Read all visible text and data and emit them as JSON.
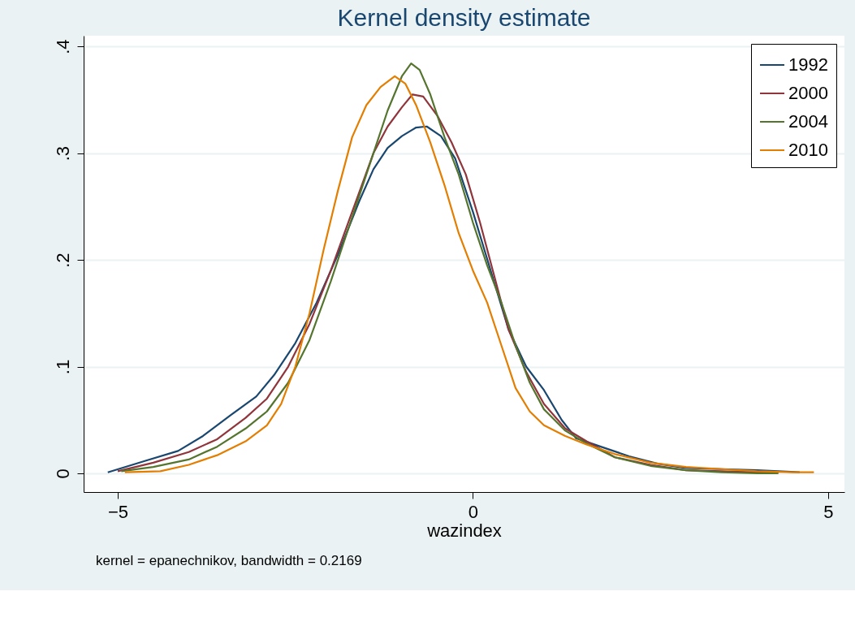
{
  "chart_data": {
    "type": "line",
    "title": "Kernel density estimate",
    "xlabel": "wazindex",
    "annotations": [
      "kernel = epanechnikov, bandwidth = 0.2169"
    ],
    "xlim": [
      -5.48,
      5.23
    ],
    "ylim": [
      -0.0175,
      0.41
    ],
    "xticks": [
      -5,
      0,
      5
    ],
    "yticks": [
      0,
      {
        "value": 0.1,
        "label": ".1"
      },
      {
        "value": 0.2,
        "label": ".2"
      },
      {
        "value": 0.3,
        "label": ".3"
      },
      {
        "value": 0.4,
        "label": ".4"
      }
    ],
    "grid": "y",
    "legend": "top right",
    "marker": "none",
    "line_style": "solid",
    "series": [
      {
        "name": "1992",
        "color": "#1a476f",
        "x": [
          -5.14,
          -4.6,
          -4.15,
          -3.8,
          -3.4,
          -3.05,
          -2.8,
          -2.5,
          -2.2,
          -1.9,
          -1.6,
          -1.4,
          -1.2,
          -1.0,
          -0.8,
          -0.65,
          -0.45,
          -0.25,
          0,
          0.25,
          0.5,
          0.75,
          1.0,
          1.25,
          1.45,
          1.8,
          2.2,
          2.6,
          3.0,
          3.5,
          4.0,
          4.6
        ],
        "values": [
          0.001,
          0.012,
          0.021,
          0.035,
          0.055,
          0.072,
          0.092,
          0.122,
          0.16,
          0.205,
          0.255,
          0.285,
          0.305,
          0.316,
          0.324,
          0.325,
          0.316,
          0.295,
          0.245,
          0.19,
          0.135,
          0.1,
          0.078,
          0.05,
          0.033,
          0.025,
          0.016,
          0.009,
          0.005,
          0.004,
          0.003,
          0.001
        ]
      },
      {
        "name": "2000",
        "color": "#90353b",
        "x": [
          -5.0,
          -4.5,
          -4.0,
          -3.6,
          -3.2,
          -2.9,
          -2.6,
          -2.3,
          -2.0,
          -1.7,
          -1.4,
          -1.2,
          -1.0,
          -0.85,
          -0.7,
          -0.5,
          -0.3,
          -0.1,
          0.1,
          0.3,
          0.5,
          0.75,
          1.0,
          1.3,
          1.6,
          2.0,
          2.5,
          3.0,
          3.5,
          4.0,
          4.3
        ],
        "values": [
          0.002,
          0.01,
          0.02,
          0.032,
          0.052,
          0.07,
          0.1,
          0.14,
          0.19,
          0.245,
          0.3,
          0.325,
          0.343,
          0.355,
          0.353,
          0.335,
          0.31,
          0.28,
          0.235,
          0.185,
          0.135,
          0.095,
          0.065,
          0.042,
          0.03,
          0.015,
          0.008,
          0.003,
          0.002,
          0.001,
          0.001
        ]
      },
      {
        "name": "2004",
        "color": "#55752f",
        "x": [
          -4.95,
          -4.5,
          -4.0,
          -3.6,
          -3.2,
          -2.9,
          -2.6,
          -2.3,
          -2.0,
          -1.7,
          -1.4,
          -1.2,
          -1.0,
          -0.87,
          -0.75,
          -0.6,
          -0.4,
          -0.2,
          0,
          0.2,
          0.4,
          0.6,
          0.8,
          1.0,
          1.3,
          1.6,
          2.0,
          2.5,
          3.0,
          3.5,
          4.0,
          4.3
        ],
        "values": [
          0.002,
          0.006,
          0.013,
          0.025,
          0.042,
          0.058,
          0.085,
          0.125,
          0.18,
          0.24,
          0.3,
          0.34,
          0.372,
          0.384,
          0.378,
          0.355,
          0.315,
          0.28,
          0.235,
          0.195,
          0.16,
          0.12,
          0.085,
          0.06,
          0.04,
          0.028,
          0.015,
          0.007,
          0.003,
          0.001,
          0.0,
          0.0
        ]
      },
      {
        "name": "2010",
        "color": "#e37e00",
        "x": [
          -4.9,
          -4.4,
          -4.0,
          -3.6,
          -3.2,
          -2.9,
          -2.7,
          -2.5,
          -2.3,
          -2.1,
          -1.9,
          -1.7,
          -1.5,
          -1.3,
          -1.1,
          -0.95,
          -0.8,
          -0.6,
          -0.4,
          -0.2,
          0,
          0.2,
          0.4,
          0.6,
          0.8,
          1.0,
          1.3,
          1.6,
          2.0,
          2.5,
          3.0,
          3.5,
          4.0,
          4.5,
          4.8
        ],
        "values": [
          0.001,
          0.002,
          0.008,
          0.017,
          0.03,
          0.045,
          0.065,
          0.1,
          0.15,
          0.21,
          0.265,
          0.315,
          0.345,
          0.362,
          0.372,
          0.365,
          0.345,
          0.31,
          0.27,
          0.225,
          0.19,
          0.16,
          0.12,
          0.08,
          0.058,
          0.045,
          0.035,
          0.027,
          0.018,
          0.01,
          0.006,
          0.004,
          0.002,
          0.001,
          0.001
        ]
      }
    ]
  }
}
